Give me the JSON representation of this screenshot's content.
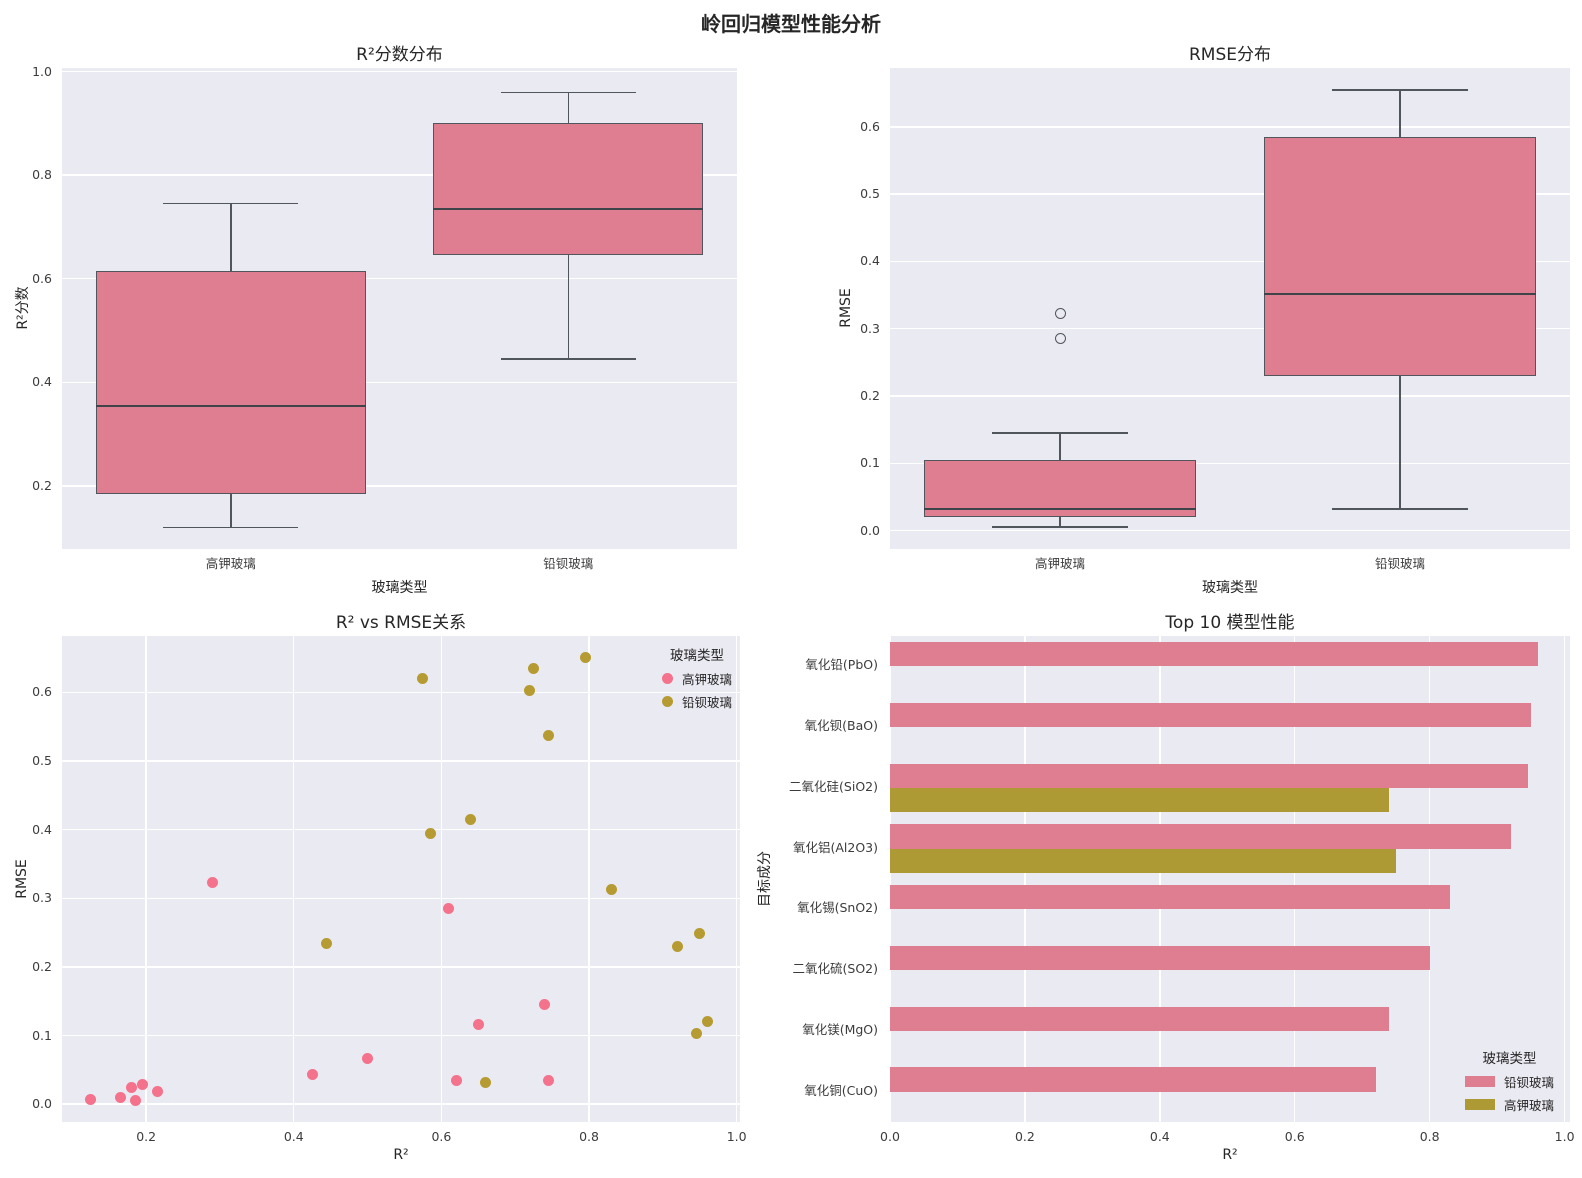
{
  "figure_title": "岭回归模型性能分析",
  "colors": {
    "axes_bg": "#eaeaf2",
    "grid": "#ffffff",
    "line": "#51565c",
    "median_line": "#3f444a",
    "box_fill_pink": "#e07e91",
    "bar_pink": "#e07e91",
    "bar_olive": "#ad9a35",
    "point_pink": "#f4728c",
    "point_olive": "#b59b32"
  },
  "chart_data": [
    {
      "id": "r2_box",
      "type": "box",
      "title": "R²分数分布",
      "xlabel": "玻璃类型",
      "ylabel": "R²分数",
      "ylim": [
        0.078,
        1.007
      ],
      "yticks": [
        0.2,
        0.4,
        0.6,
        0.8,
        1.0
      ],
      "categories": [
        "高钾玻璃",
        "铅钡玻璃"
      ],
      "fill_color": "#e07e91",
      "boxes": [
        {
          "category": "高钾玻璃",
          "whisker_low": 0.12,
          "q1": 0.185,
          "median": 0.355,
          "q3": 0.615,
          "whisker_high": 0.745,
          "outliers": []
        },
        {
          "category": "铅钡玻璃",
          "whisker_low": 0.445,
          "q1": 0.645,
          "median": 0.735,
          "q3": 0.9,
          "whisker_high": 0.96,
          "outliers": []
        }
      ]
    },
    {
      "id": "rmse_box",
      "type": "box",
      "title": "RMSE分布",
      "xlabel": "玻璃类型",
      "ylabel": "RMSE",
      "ylim": [
        -0.0275,
        0.6875
      ],
      "yticks": [
        0.0,
        0.1,
        0.2,
        0.3,
        0.4,
        0.5,
        0.6
      ],
      "categories": [
        "高钾玻璃",
        "铅钡玻璃"
      ],
      "fill_color": "#e07e91",
      "boxes": [
        {
          "category": "高钾玻璃",
          "whisker_low": 0.005,
          "q1": 0.02,
          "median": 0.032,
          "q3": 0.105,
          "whisker_high": 0.145,
          "outliers": [
            0.285,
            0.323
          ]
        },
        {
          "category": "铅钡玻璃",
          "whisker_low": 0.032,
          "q1": 0.23,
          "median": 0.352,
          "q3": 0.585,
          "whisker_high": 0.655,
          "outliers": []
        }
      ]
    },
    {
      "id": "scatter_r2_rmse",
      "type": "scatter",
      "title": "R² vs RMSE关系",
      "xlabel": "R²",
      "ylabel": "RMSE",
      "xlim": [
        0.086,
        1.0045
      ],
      "ylim": [
        -0.026,
        0.682
      ],
      "xticks": [
        0.2,
        0.4,
        0.6,
        0.8,
        1.0
      ],
      "yticks": [
        0.0,
        0.1,
        0.2,
        0.3,
        0.4,
        0.5,
        0.6
      ],
      "legend": {
        "title": "玻璃类型",
        "position": "top-right",
        "marker": "dot"
      },
      "series": [
        {
          "name": "高钾玻璃",
          "color": "#f4728c",
          "points": [
            [
              0.125,
              0.007
            ],
            [
              0.165,
              0.01
            ],
            [
              0.18,
              0.024
            ],
            [
              0.185,
              0.006
            ],
            [
              0.195,
              0.028
            ],
            [
              0.215,
              0.019
            ],
            [
              0.29,
              0.323
            ],
            [
              0.425,
              0.043
            ],
            [
              0.5,
              0.066
            ],
            [
              0.61,
              0.285
            ],
            [
              0.62,
              0.034
            ],
            [
              0.65,
              0.116
            ],
            [
              0.74,
              0.145
            ],
            [
              0.745,
              0.034
            ]
          ]
        },
        {
          "name": "铅钡玻璃",
          "color": "#b59b32",
          "points": [
            [
              0.445,
              0.234
            ],
            [
              0.575,
              0.62
            ],
            [
              0.585,
              0.394
            ],
            [
              0.64,
              0.414
            ],
            [
              0.66,
              0.032
            ],
            [
              0.72,
              0.602
            ],
            [
              0.725,
              0.635
            ],
            [
              0.745,
              0.537
            ],
            [
              0.795,
              0.65
            ],
            [
              0.83,
              0.312
            ],
            [
              0.92,
              0.23
            ],
            [
              0.945,
              0.103
            ],
            [
              0.95,
              0.249
            ],
            [
              0.96,
              0.121
            ]
          ]
        }
      ]
    },
    {
      "id": "top10_barh",
      "type": "barh",
      "title": "Top 10 模型性能",
      "xlabel": "R²",
      "ylabel": "目标成分",
      "xlim": [
        0,
        1.008
      ],
      "xticks": [
        0.0,
        0.2,
        0.4,
        0.6,
        0.8,
        1.0
      ],
      "categories": [
        "氧化铅(PbO)",
        "氧化钡(BaO)",
        "二氧化硅(SiO2)",
        "氧化铝(Al2O3)",
        "氧化锡(SnO2)",
        "二氧化硫(SO2)",
        "氧化镁(MgO)",
        "氧化铜(CuO)"
      ],
      "legend": {
        "title": "玻璃类型",
        "position": "bottom-right",
        "marker": "swatch"
      },
      "series": [
        {
          "name": "铅钡玻璃",
          "color": "#e07e91",
          "values": [
            0.96,
            0.95,
            0.945,
            0.92,
            0.83,
            0.8,
            0.74,
            0.72
          ]
        },
        {
          "name": "高钾玻璃",
          "color": "#ad9a35",
          "values": [
            null,
            null,
            0.74,
            0.75,
            null,
            null,
            null,
            null
          ]
        }
      ]
    }
  ]
}
